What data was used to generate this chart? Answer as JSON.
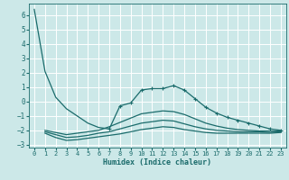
{
  "xlabel": "Humidex (Indice chaleur)",
  "background_color": "#cce8e8",
  "grid_color": "#ffffff",
  "line_color": "#1a6b6b",
  "xlim": [
    -0.5,
    23.5
  ],
  "ylim": [
    -3.2,
    6.8
  ],
  "yticks": [
    -3,
    -2,
    -1,
    0,
    1,
    2,
    3,
    4,
    5,
    6
  ],
  "xticks": [
    0,
    1,
    2,
    3,
    4,
    5,
    6,
    7,
    8,
    9,
    10,
    11,
    12,
    13,
    14,
    15,
    16,
    17,
    18,
    19,
    20,
    21,
    22,
    23
  ],
  "curves": [
    {
      "x": [
        0,
        1,
        2,
        3,
        4,
        5,
        6,
        7,
        8,
        9,
        10,
        11,
        12,
        13,
        14,
        15,
        16,
        17,
        18,
        19,
        20,
        21,
        22,
        23
      ],
      "y": [
        6.4,
        2.1,
        0.3,
        -0.5,
        -1.0,
        -1.5,
        -1.8,
        -1.9,
        -0.3,
        -0.1,
        0.8,
        0.9,
        0.9,
        1.1,
        0.8,
        0.2,
        -0.4,
        -0.8,
        -1.1,
        -1.3,
        -1.5,
        -1.7,
        -1.9,
        -2.0
      ],
      "has_markers": true,
      "marker_from_x": 7
    },
    {
      "x": [
        1,
        2,
        3,
        4,
        5,
        6,
        7,
        8,
        9,
        10,
        11,
        12,
        13,
        14,
        15,
        16,
        17,
        18,
        19,
        20,
        21,
        22,
        23
      ],
      "y": [
        -2.2,
        -2.5,
        -2.7,
        -2.65,
        -2.55,
        -2.45,
        -2.35,
        -2.25,
        -2.1,
        -1.95,
        -1.85,
        -1.75,
        -1.8,
        -1.95,
        -2.05,
        -2.15,
        -2.2,
        -2.2,
        -2.2,
        -2.2,
        -2.2,
        -2.2,
        -2.15
      ],
      "has_markers": false
    },
    {
      "x": [
        1,
        2,
        3,
        4,
        5,
        6,
        7,
        8,
        9,
        10,
        11,
        12,
        13,
        14,
        15,
        16,
        17,
        18,
        19,
        20,
        21,
        22,
        23
      ],
      "y": [
        -2.1,
        -2.3,
        -2.5,
        -2.45,
        -2.35,
        -2.2,
        -2.1,
        -1.9,
        -1.7,
        -1.5,
        -1.4,
        -1.3,
        -1.35,
        -1.55,
        -1.75,
        -1.9,
        -2.0,
        -2.05,
        -2.1,
        -2.1,
        -2.1,
        -2.15,
        -2.1
      ],
      "has_markers": false
    },
    {
      "x": [
        1,
        2,
        3,
        4,
        5,
        6,
        7,
        8,
        9,
        10,
        11,
        12,
        13,
        14,
        15,
        16,
        17,
        18,
        19,
        20,
        21,
        22,
        23
      ],
      "y": [
        -2.0,
        -2.15,
        -2.3,
        -2.2,
        -2.1,
        -2.0,
        -1.75,
        -1.45,
        -1.15,
        -0.85,
        -0.75,
        -0.65,
        -0.7,
        -0.9,
        -1.2,
        -1.5,
        -1.7,
        -1.85,
        -1.95,
        -2.0,
        -2.05,
        -2.05,
        -2.05
      ],
      "has_markers": false
    }
  ]
}
